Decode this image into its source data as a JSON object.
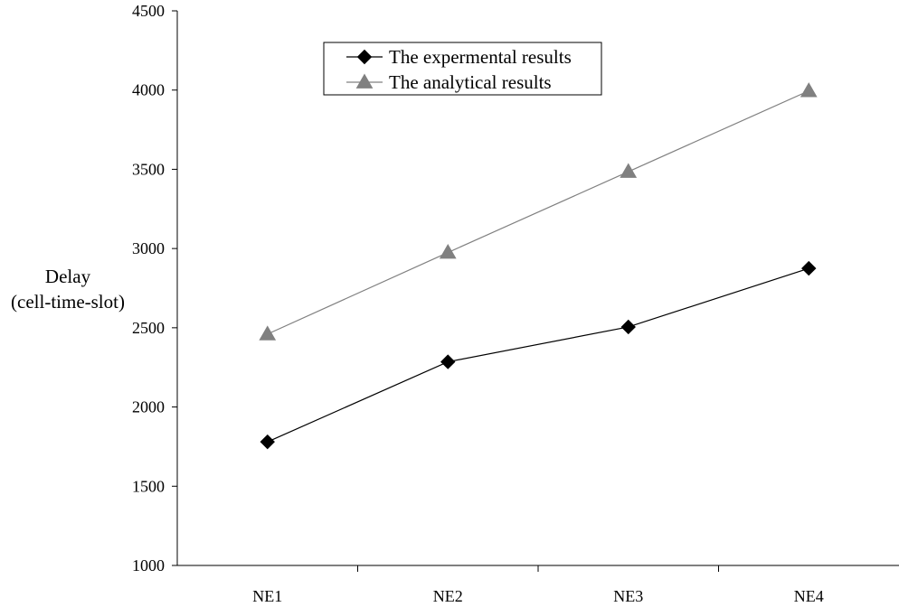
{
  "chart_data": {
    "type": "line",
    "title": "",
    "xlabel": "",
    "ylabel": "Delay",
    "ylabel_sub": "(cell-time-slot)",
    "categories": [
      "NE1",
      "NE2",
      "NE3",
      "NE4"
    ],
    "ylim": [
      1000,
      4500
    ],
    "yticks": [
      1000,
      1500,
      2000,
      2500,
      3000,
      3500,
      4000,
      4500
    ],
    "grid": false,
    "legend_position": "top-center",
    "series": [
      {
        "name": "The expermental results",
        "values": [
          1780,
          2285,
          2505,
          2875
        ],
        "color": "#000000",
        "marker": "diamond"
      },
      {
        "name": "The analytical results",
        "values": [
          2460,
          2975,
          3485,
          3995
        ],
        "color": "#808080",
        "marker": "triangle"
      }
    ]
  }
}
